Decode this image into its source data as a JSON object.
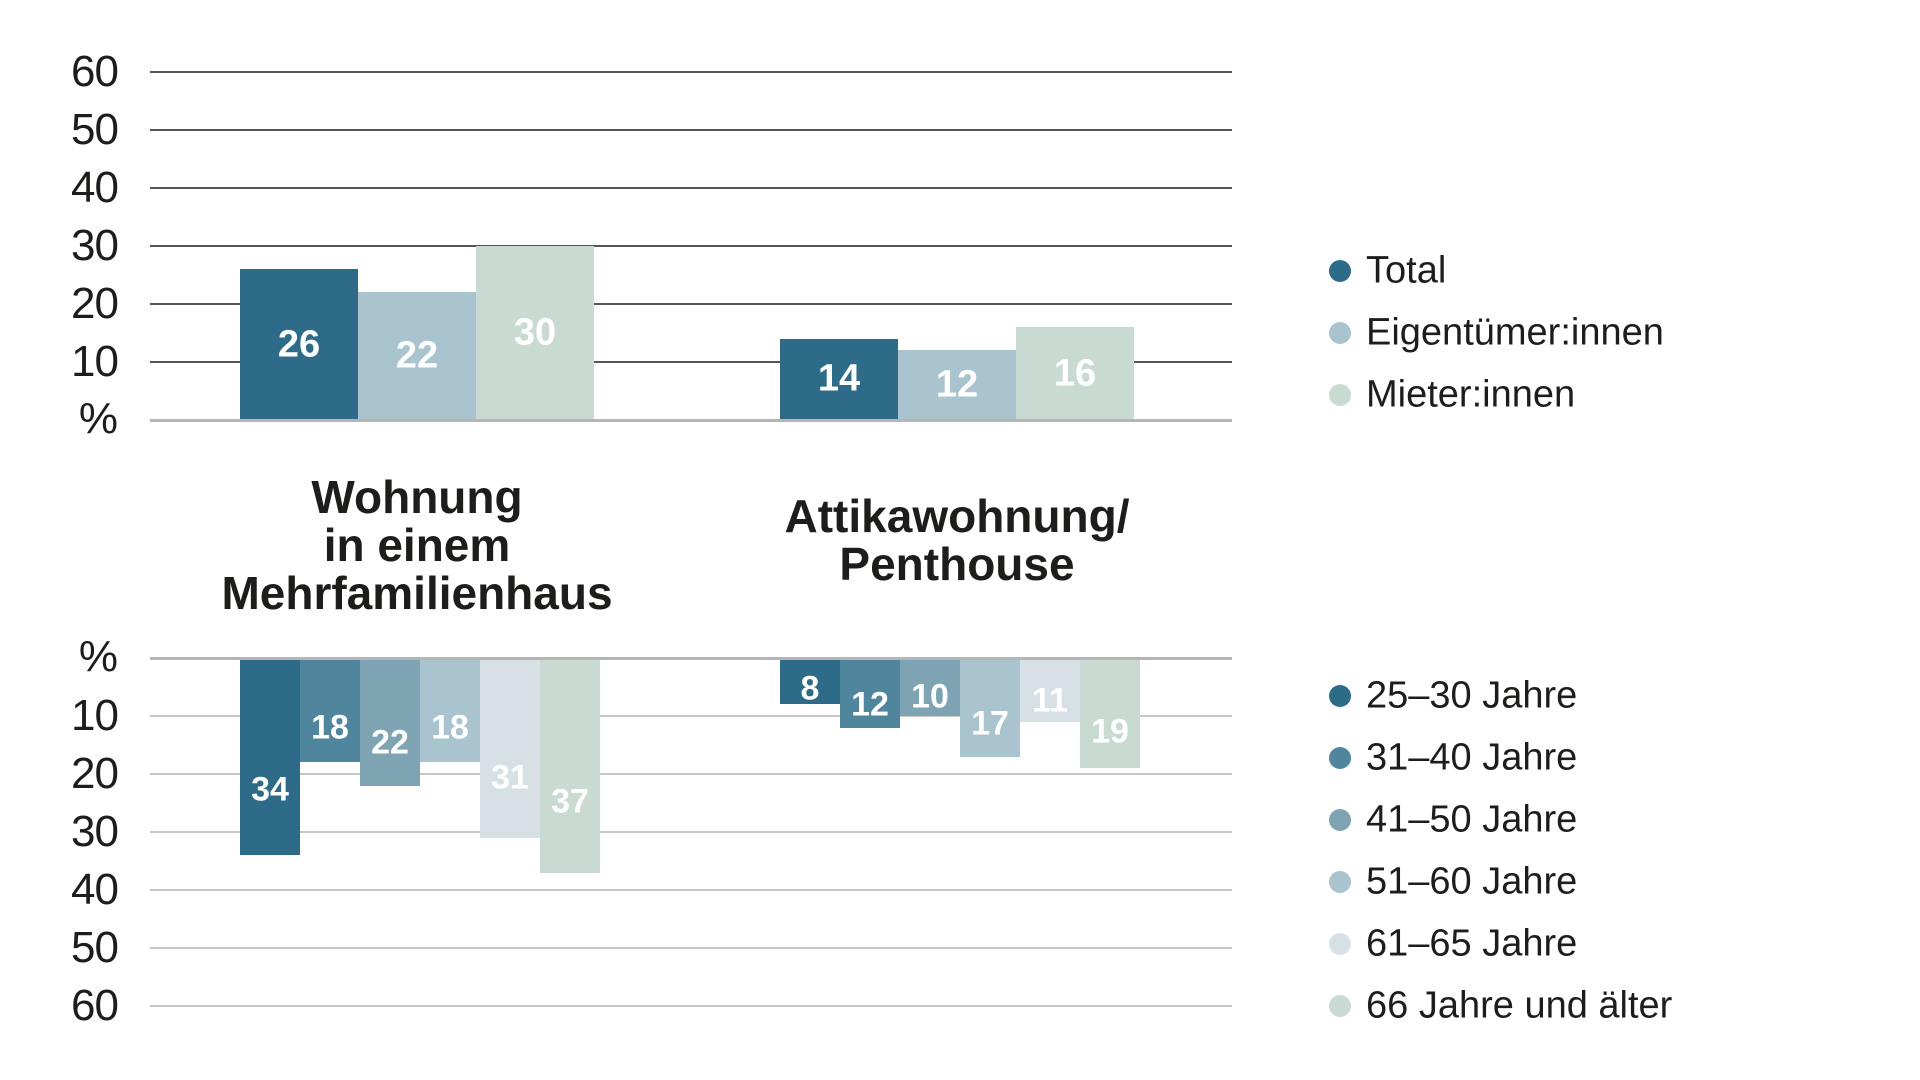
{
  "unit_suffix": "%",
  "colors": {
    "series_dark_teal": "#2d6b89",
    "series_teal": "#4f869e",
    "series_steel_blue": "#7ea3b3",
    "series_light_blue": "#a9c3cf",
    "series_pale_blue": "#d6e0e5",
    "series_pale_sage": "#c8dad2",
    "grid_dark": "#565656",
    "grid_light": "#c7c7c7",
    "baseline_gray": "#b5b5b5",
    "text": "#1d1d1b",
    "bar_label": "#ffffff"
  },
  "chart_data": [
    {
      "type": "bar",
      "orientation": "up",
      "unit_label": "%",
      "axis_ticks": [
        10,
        20,
        30,
        40,
        50,
        60
      ],
      "ylim": [
        0,
        60
      ],
      "grid": true,
      "legend_position": "right",
      "categories": [
        {
          "lines": [
            "Wohnung",
            "in einem",
            "Mehrfamilienhaus"
          ]
        },
        {
          "lines": [
            "Attikawohnung/",
            "Penthouse"
          ]
        }
      ],
      "series": [
        {
          "name": "Total",
          "color": "#2d6b89",
          "values": [
            26,
            14
          ]
        },
        {
          "name": "Eigentümer:innen",
          "color": "#a9c3cf",
          "values": [
            22,
            12
          ]
        },
        {
          "name": "Mieter:innen",
          "color": "#c8dad2",
          "values": [
            30,
            16
          ]
        }
      ]
    },
    {
      "type": "bar",
      "orientation": "down",
      "unit_label": "%",
      "axis_ticks": [
        10,
        20,
        30,
        40,
        50,
        60
      ],
      "ylim": [
        0,
        60
      ],
      "grid": true,
      "legend_position": "right",
      "series": [
        {
          "name": "25–30 Jahre",
          "color": "#2d6b89",
          "values": [
            34,
            8
          ]
        },
        {
          "name": "31–40 Jahre",
          "color": "#4f869e",
          "values": [
            18,
            12
          ]
        },
        {
          "name": "41–50 Jahre",
          "color": "#7ea3b3",
          "values": [
            22,
            10
          ]
        },
        {
          "name": "51–60 Jahre",
          "color": "#a9c3cf",
          "values": [
            18,
            17
          ]
        },
        {
          "name": "61–65 Jahre",
          "color": "#d6e0e5",
          "values": [
            31,
            11
          ]
        },
        {
          "name": "66 Jahre und älter",
          "color": "#c8dad2",
          "values": [
            37,
            19
          ]
        }
      ]
    }
  ]
}
